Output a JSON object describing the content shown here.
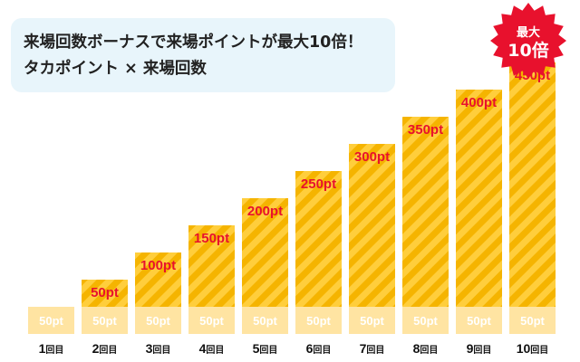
{
  "headline": {
    "line1": "来場回数ボーナスで来場ポイントが最大10倍！",
    "line2": "タカポイント × 来場回数"
  },
  "badge": {
    "line1": "最大",
    "line2": "10倍"
  },
  "colors": {
    "base": "#ffe4a2",
    "bonus_light": "#ffce3c",
    "bonus_stripe": "#f5b400",
    "bonus_label": "#e8112d",
    "badge": "#e8112d"
  },
  "chart_data": {
    "type": "bar",
    "stacked": true,
    "categories": [
      "1回目",
      "2回目",
      "3回目",
      "4回目",
      "5回目",
      "6回目",
      "7回目",
      "8回目",
      "9回目",
      "10回目"
    ],
    "series": [
      {
        "values": [
          50,
          50,
          50,
          50,
          50,
          50,
          50,
          50,
          50,
          50
        ]
      },
      {
        "values": [
          0,
          50,
          100,
          150,
          200,
          250,
          300,
          350,
          400,
          450
        ]
      }
    ],
    "unit": "pt"
  }
}
